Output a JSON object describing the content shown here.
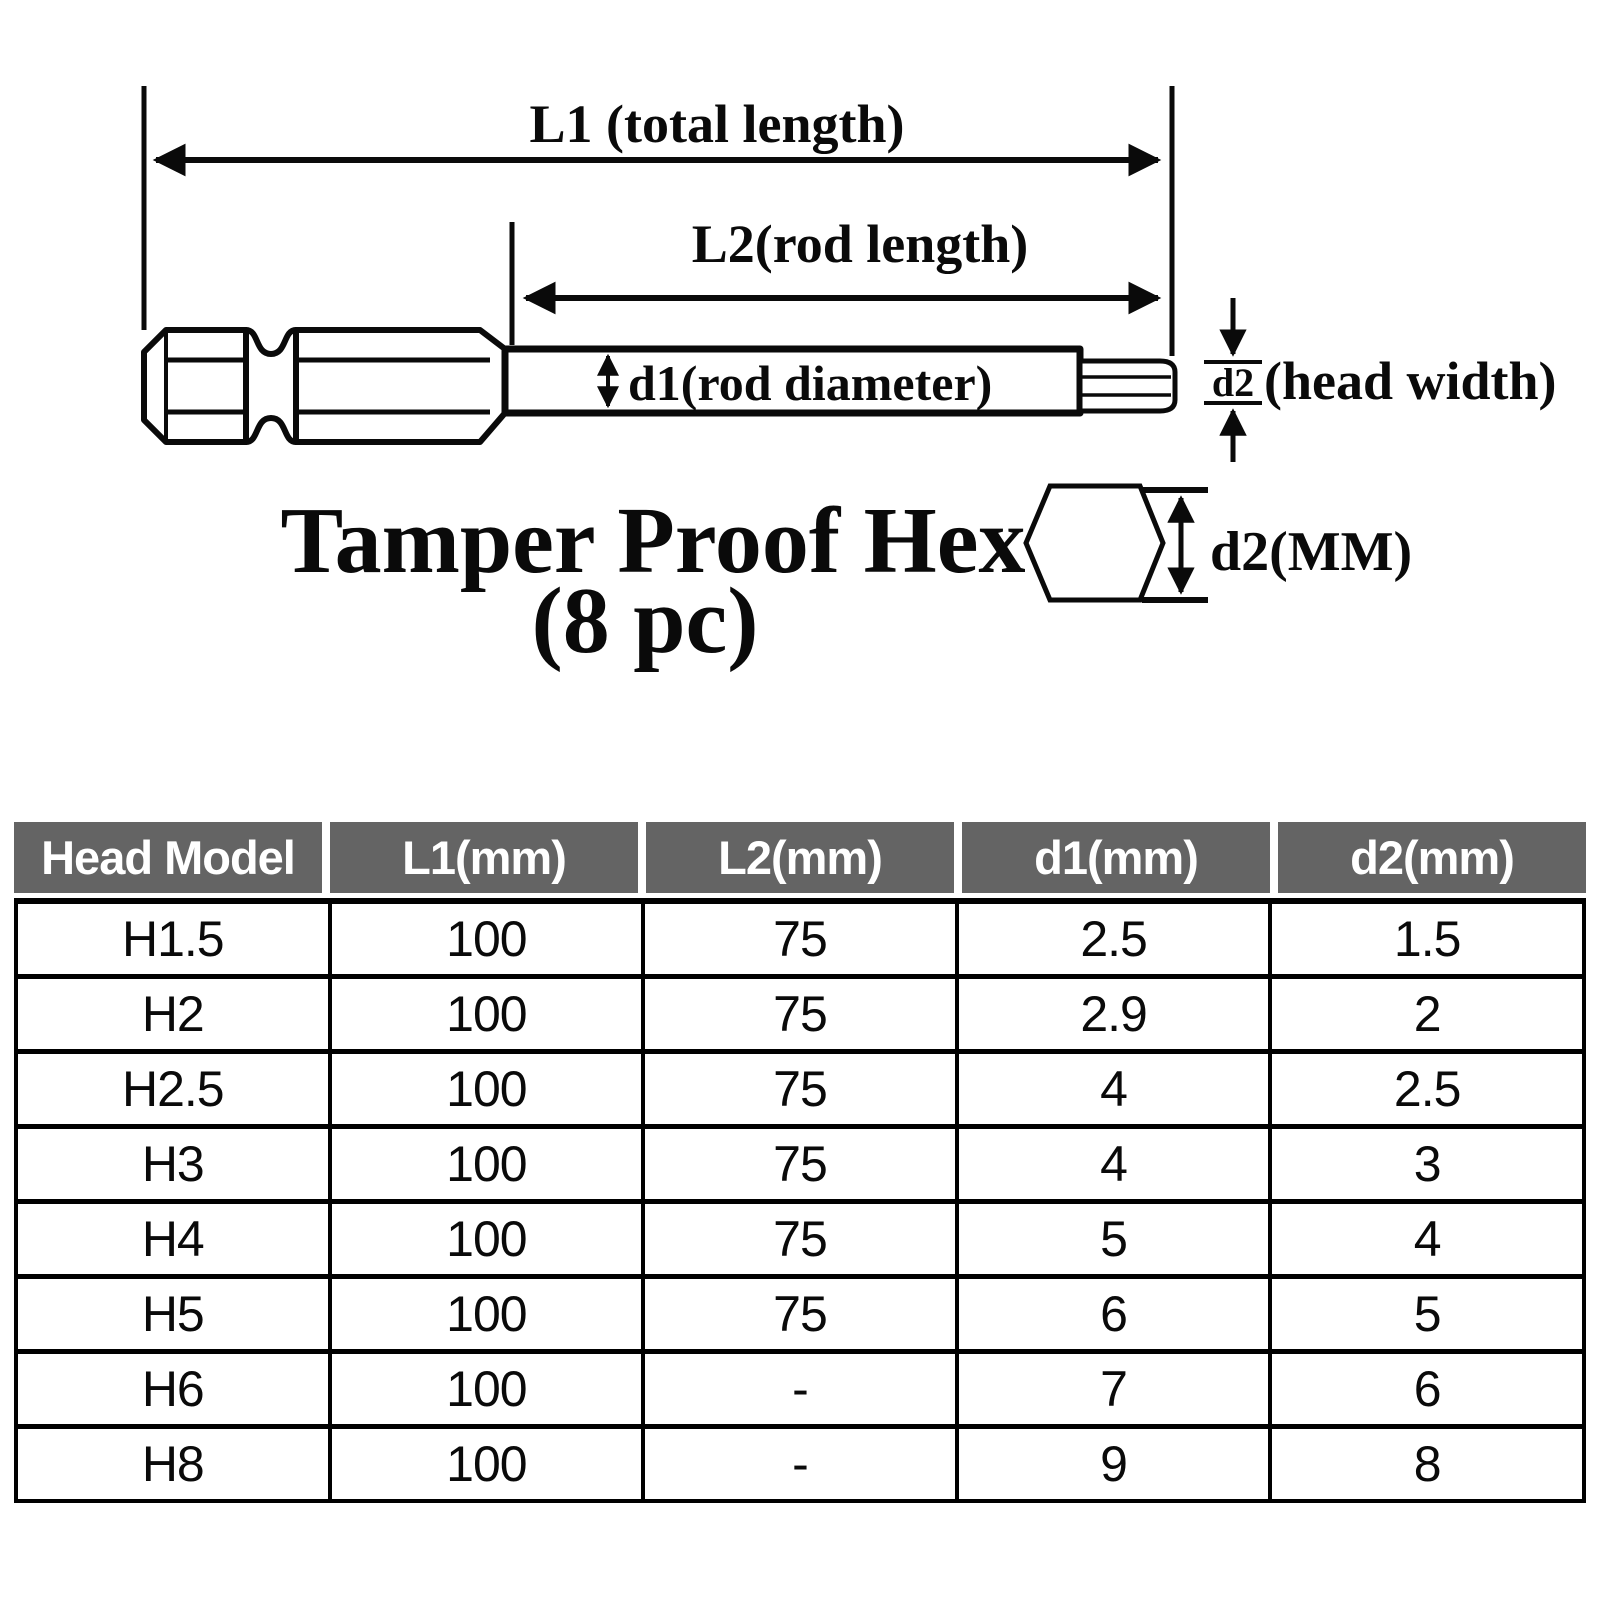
{
  "page": {
    "background": "#ffffff"
  },
  "diagram": {
    "l1_label": "L1 (total length)",
    "l2_label": "L2(rod length)",
    "d1_label": "d1(rod diameter)",
    "d2_label": "d2",
    "d2_head_label": "(head width)",
    "hex_dim_label": "d2(MM)",
    "title_line1": "Tamper Proof Hex",
    "title_line2": "(8 pc)",
    "line_color": "#0a0a0a"
  },
  "table": {
    "columns": [
      "Head Model",
      "L1(mm)",
      "L2(mm)",
      "d1(mm)",
      "d2(mm)"
    ],
    "rows": [
      [
        "H1.5",
        "100",
        "75",
        "2.5",
        "1.5"
      ],
      [
        "H2",
        "100",
        "75",
        "2.9",
        "2"
      ],
      [
        "H2.5",
        "100",
        "75",
        "4",
        "2.5"
      ],
      [
        "H3",
        "100",
        "75",
        "4",
        "3"
      ],
      [
        "H4",
        "100",
        "75",
        "5",
        "4"
      ],
      [
        "H5",
        "100",
        "75",
        "6",
        "5"
      ],
      [
        "H6",
        "100",
        "-",
        "7",
        "6"
      ],
      [
        "H8",
        "100",
        "-",
        "9",
        "8"
      ]
    ],
    "header_bg": "#646464",
    "header_text_color": "#ffffff",
    "border_color": "#000000"
  },
  "chart_data": {
    "type": "table",
    "title": "Tamper Proof Hex (8 pc)",
    "columns": [
      "Head Model",
      "L1(mm)",
      "L2(mm)",
      "d1(mm)",
      "d2(mm)"
    ],
    "rows": [
      [
        "H1.5",
        "100",
        "75",
        "2.5",
        "1.5"
      ],
      [
        "H2",
        "100",
        "75",
        "2.9",
        "2"
      ],
      [
        "H2.5",
        "100",
        "75",
        "4",
        "2.5"
      ],
      [
        "H3",
        "100",
        "75",
        "4",
        "3"
      ],
      [
        "H4",
        "100",
        "75",
        "5",
        "4"
      ],
      [
        "H5",
        "100",
        "75",
        "6",
        "5"
      ],
      [
        "H6",
        "100",
        "-",
        "7",
        "6"
      ],
      [
        "H8",
        "100",
        "-",
        "9",
        "8"
      ]
    ]
  }
}
